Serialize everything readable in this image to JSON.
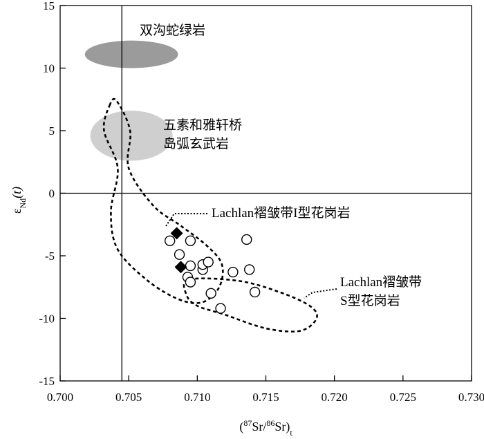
{
  "chart_data": {
    "type": "scatter",
    "title": "",
    "xlabel": {
      "prefix": "(",
      "sup1": "87",
      "mid": "Sr/",
      "sup2": "86",
      "end": "Sr)",
      "sub": "t"
    },
    "ylabel": {
      "main": "ε",
      "sub": "Nd",
      "paren": "(t)"
    },
    "xlim": [
      0.7,
      0.73
    ],
    "ylim": [
      -15,
      15
    ],
    "xticks": [
      "0.700",
      "0.705",
      "0.710",
      "0.715",
      "0.720",
      "0.725",
      "0.730"
    ],
    "yticks": [
      "15",
      "10",
      "5",
      "0",
      "-5",
      "-10",
      "-15"
    ],
    "reference_lines": {
      "x": 0.7045,
      "y": 0
    },
    "series": [
      {
        "marker": "open-circle",
        "points": [
          [
            0.708,
            -3.8
          ],
          [
            0.7087,
            -4.9
          ],
          [
            0.7095,
            -3.8
          ],
          [
            0.7095,
            -5.8
          ],
          [
            0.7093,
            -6.7
          ],
          [
            0.7095,
            -7.1
          ],
          [
            0.7104,
            -6.1
          ],
          [
            0.7104,
            -5.7
          ],
          [
            0.7108,
            -5.5
          ],
          [
            0.711,
            -8.0
          ],
          [
            0.7117,
            -9.2
          ],
          [
            0.7126,
            -6.3
          ],
          [
            0.7136,
            -3.7
          ],
          [
            0.7138,
            -6.1
          ],
          [
            0.7142,
            -7.9
          ]
        ]
      },
      {
        "marker": "filled-diamond",
        "points": [
          [
            0.7085,
            -3.2
          ],
          [
            0.7088,
            -5.9
          ]
        ]
      }
    ],
    "regions": [
      {
        "label": "双沟蛇绿岩",
        "shape": "ellipse",
        "cx": 0.7052,
        "cy": 11.1,
        "rx": 0.0034,
        "ry": 1.1,
        "color": "#9b9b9b"
      },
      {
        "label_lines": [
          "五素和雅轩桥",
          "岛弧玄武岩"
        ],
        "shape": "ellipse",
        "cx": 0.7052,
        "cy": 4.6,
        "rx": 0.003,
        "ry": 2.0,
        "color": "#cfcfcf"
      }
    ],
    "outlines": [
      {
        "label": "Lachlan褶皱带I型花岗岩",
        "style": "dashed",
        "path": [
          [
            0.7036,
            7.0
          ],
          [
            0.7041,
            7.4
          ],
          [
            0.7051,
            5.0
          ],
          [
            0.705,
            2.0
          ],
          [
            0.7068,
            -1.0
          ],
          [
            0.7088,
            -2.6
          ],
          [
            0.7107,
            -4.2
          ],
          [
            0.7118,
            -5.7
          ],
          [
            0.7116,
            -7.5
          ],
          [
            0.7104,
            -8.7
          ],
          [
            0.7087,
            -8.5
          ],
          [
            0.7064,
            -7.0
          ],
          [
            0.7042,
            -4.5
          ],
          [
            0.7037,
            -1.5
          ],
          [
            0.7042,
            2.0
          ],
          [
            0.7032,
            5.0
          ]
        ]
      },
      {
        "label_lines": [
          "Lachlan褶皱带",
          "S型花岗岩"
        ],
        "style": "dashed",
        "path": [
          [
            0.7094,
            -6.9
          ],
          [
            0.713,
            -7.0
          ],
          [
            0.716,
            -7.9
          ],
          [
            0.7182,
            -9.0
          ],
          [
            0.7187,
            -10.0
          ],
          [
            0.7175,
            -11.0
          ],
          [
            0.715,
            -10.8
          ],
          [
            0.712,
            -9.7
          ],
          [
            0.71,
            -9.0
          ],
          [
            0.7092,
            -8.1
          ]
        ]
      }
    ]
  }
}
